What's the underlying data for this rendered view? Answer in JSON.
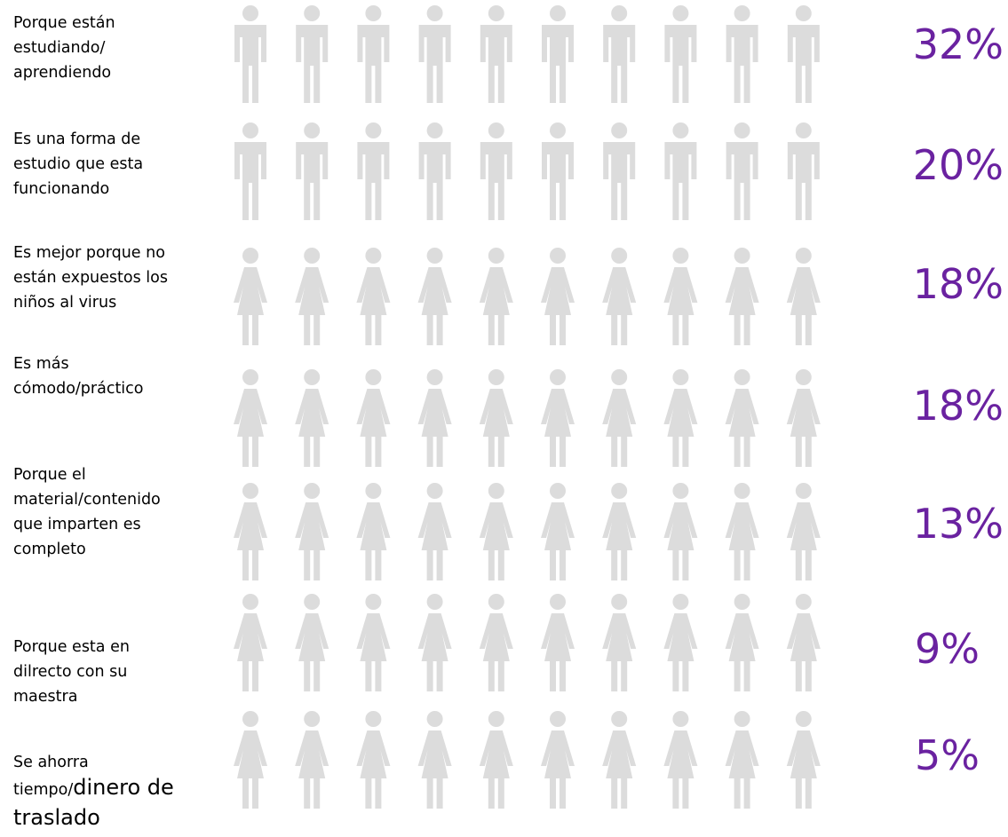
{
  "chart_data": {
    "type": "pictograph",
    "icons_per_row": 10,
    "colors": {
      "filled": "#6a22e0",
      "empty": "#dcdcdc",
      "percent_text": "#6a22a0"
    },
    "rows": [
      {
        "label_lines": [
          "Porque están",
          "estudiando/",
          "aprendiendo"
        ],
        "value": 32,
        "display": "32%",
        "icon": "man-icon"
      },
      {
        "label_lines": [
          "Es una forma de",
          "estudio que esta",
          "funcionando"
        ],
        "value": 20,
        "display": "20%",
        "icon": "man-icon"
      },
      {
        "label_lines": [
          "Es mejor porque no",
          "están expuestos los",
          "niños al virus"
        ],
        "value": 18,
        "display": "18%",
        "icon": "woman-icon"
      },
      {
        "label_lines": [
          "Es más",
          "cómodo/práctico"
        ],
        "value": 18,
        "display": "18%",
        "icon": "woman-icon"
      },
      {
        "label_lines": [
          "Porque el",
          "material/contenido",
          "que imparten es",
          "completo"
        ],
        "value": 13,
        "display": "13%",
        "icon": "woman-icon"
      },
      {
        "label_lines": [
          "Porque esta en",
          "dilrecto con su",
          "maestra"
        ],
        "value": 9,
        "display": "9%",
        "icon": "woman-icon"
      },
      {
        "label_lines": [
          "Se ahorra",
          "tiempo/dinero de",
          "traslado"
        ],
        "value": 5,
        "display": "5%",
        "icon": "woman-icon"
      }
    ]
  }
}
